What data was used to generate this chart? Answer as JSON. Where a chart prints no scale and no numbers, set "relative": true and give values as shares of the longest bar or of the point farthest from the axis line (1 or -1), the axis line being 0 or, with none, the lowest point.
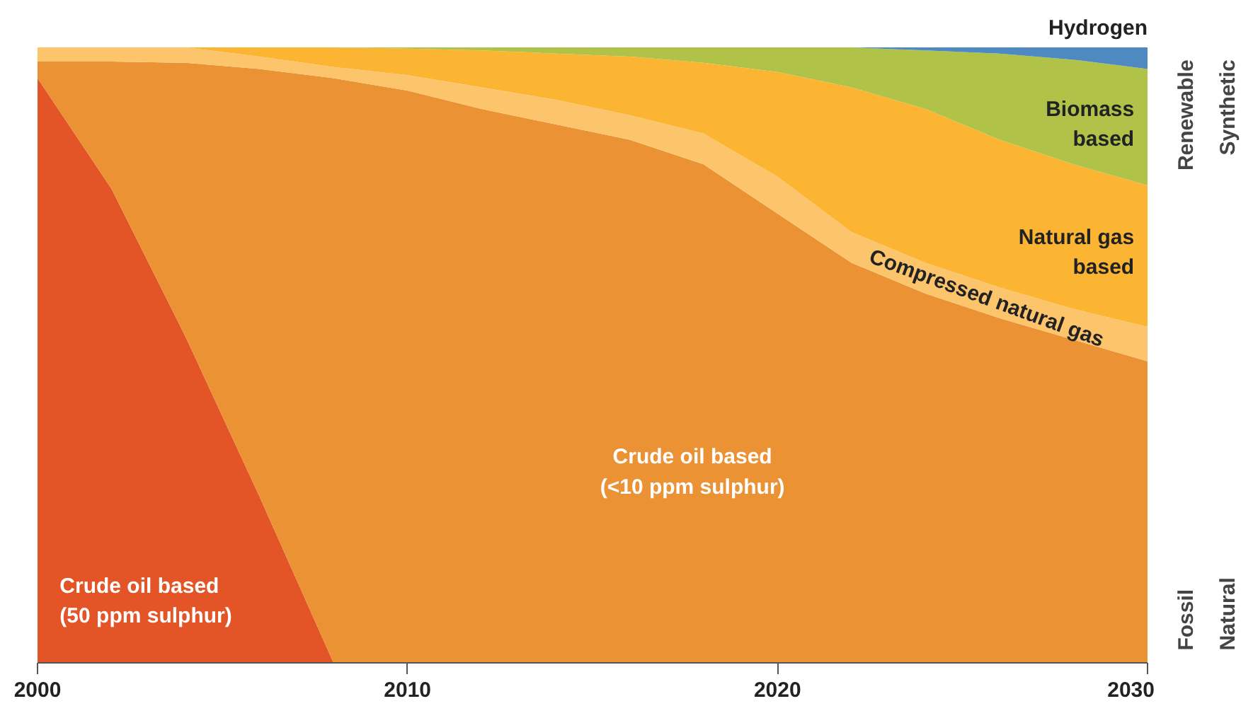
{
  "chart_data": {
    "type": "area",
    "stacked": true,
    "relative": true,
    "x": [
      2000,
      2002,
      2004,
      2006,
      2008,
      2010,
      2012,
      2014,
      2016,
      2018,
      2020,
      2022,
      2024,
      2026,
      2028,
      2030
    ],
    "xlim": [
      2000,
      2030
    ],
    "xticks": [
      2000,
      2010,
      2020,
      2030
    ],
    "grid": false,
    "legend": false,
    "series": [
      {
        "name": "Crude oil based\n(50 ppm sulphur)",
        "color": "#e35426",
        "values": [
          0.95,
          0.77,
          0.53,
          0.27,
          0,
          0,
          0,
          0,
          0,
          0,
          0,
          0,
          0,
          0,
          0,
          0
        ]
      },
      {
        "name": "Crude oil based\n(<10 ppm sulphur)",
        "color": "#eb9234",
        "values": [
          0.027,
          0.207,
          0.445,
          0.695,
          0.95,
          0.93,
          0.9,
          0.875,
          0.85,
          0.81,
          0.73,
          0.65,
          0.6,
          0.56,
          0.525,
          0.49
        ]
      },
      {
        "name": "Compressed natural gas",
        "color": "#fcc56c",
        "values": [
          0.023,
          0.023,
          0.025,
          0.02,
          0.018,
          0.025,
          0.035,
          0.04,
          0.04,
          0.05,
          0.06,
          0.05,
          0.05,
          0.05,
          0.05,
          0.056
        ]
      },
      {
        "name": "Natural gas\nbased",
        "color": "#fbb532",
        "values": [
          0,
          0,
          0,
          0.015,
          0.032,
          0.043,
          0.06,
          0.075,
          0.095,
          0.115,
          0.17,
          0.235,
          0.25,
          0.24,
          0.235,
          0.23
        ]
      },
      {
        "name": "Biomass\nbased",
        "color": "#b0c248",
        "values": [
          0,
          0,
          0,
          0,
          0,
          0.002,
          0.005,
          0.01,
          0.015,
          0.025,
          0.04,
          0.065,
          0.095,
          0.14,
          0.17,
          0.189
        ]
      },
      {
        "name": "Hydrogen",
        "color": "#4e89c2",
        "values": [
          0,
          0,
          0,
          0,
          0,
          0,
          0,
          0,
          0,
          0,
          0,
          0,
          0.005,
          0.01,
          0.02,
          0.035
        ]
      }
    ],
    "annotations": [
      "Renewable",
      "Synthetic",
      "Fossil",
      "Natural"
    ]
  }
}
